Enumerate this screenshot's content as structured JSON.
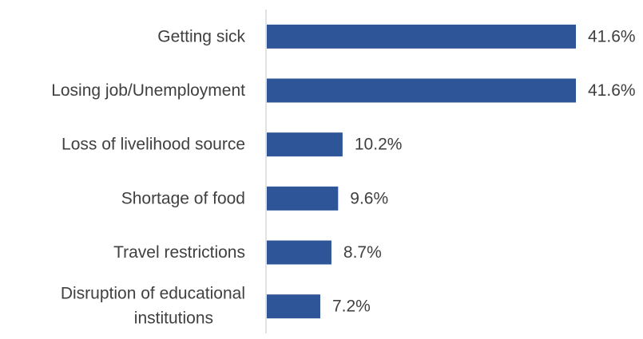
{
  "chart_data": {
    "type": "bar",
    "orientation": "horizontal",
    "categories": [
      "Getting sick",
      "Losing job/Unemployment",
      "Loss of livelihood source",
      "Shortage of food",
      "Travel restrictions",
      "Disruption of educational institutions"
    ],
    "values": [
      41.6,
      41.6,
      10.2,
      9.6,
      8.7,
      7.2
    ],
    "value_labels": [
      "41.6%",
      "41.6%",
      "10.2%",
      "9.6%",
      "8.7%",
      "7.2%"
    ],
    "bar_color": "#2e5597",
    "axis_color": "#d9d9d9",
    "text_color": "#404040",
    "xlim": [
      0,
      45
    ],
    "grid": false,
    "legend": "none"
  }
}
